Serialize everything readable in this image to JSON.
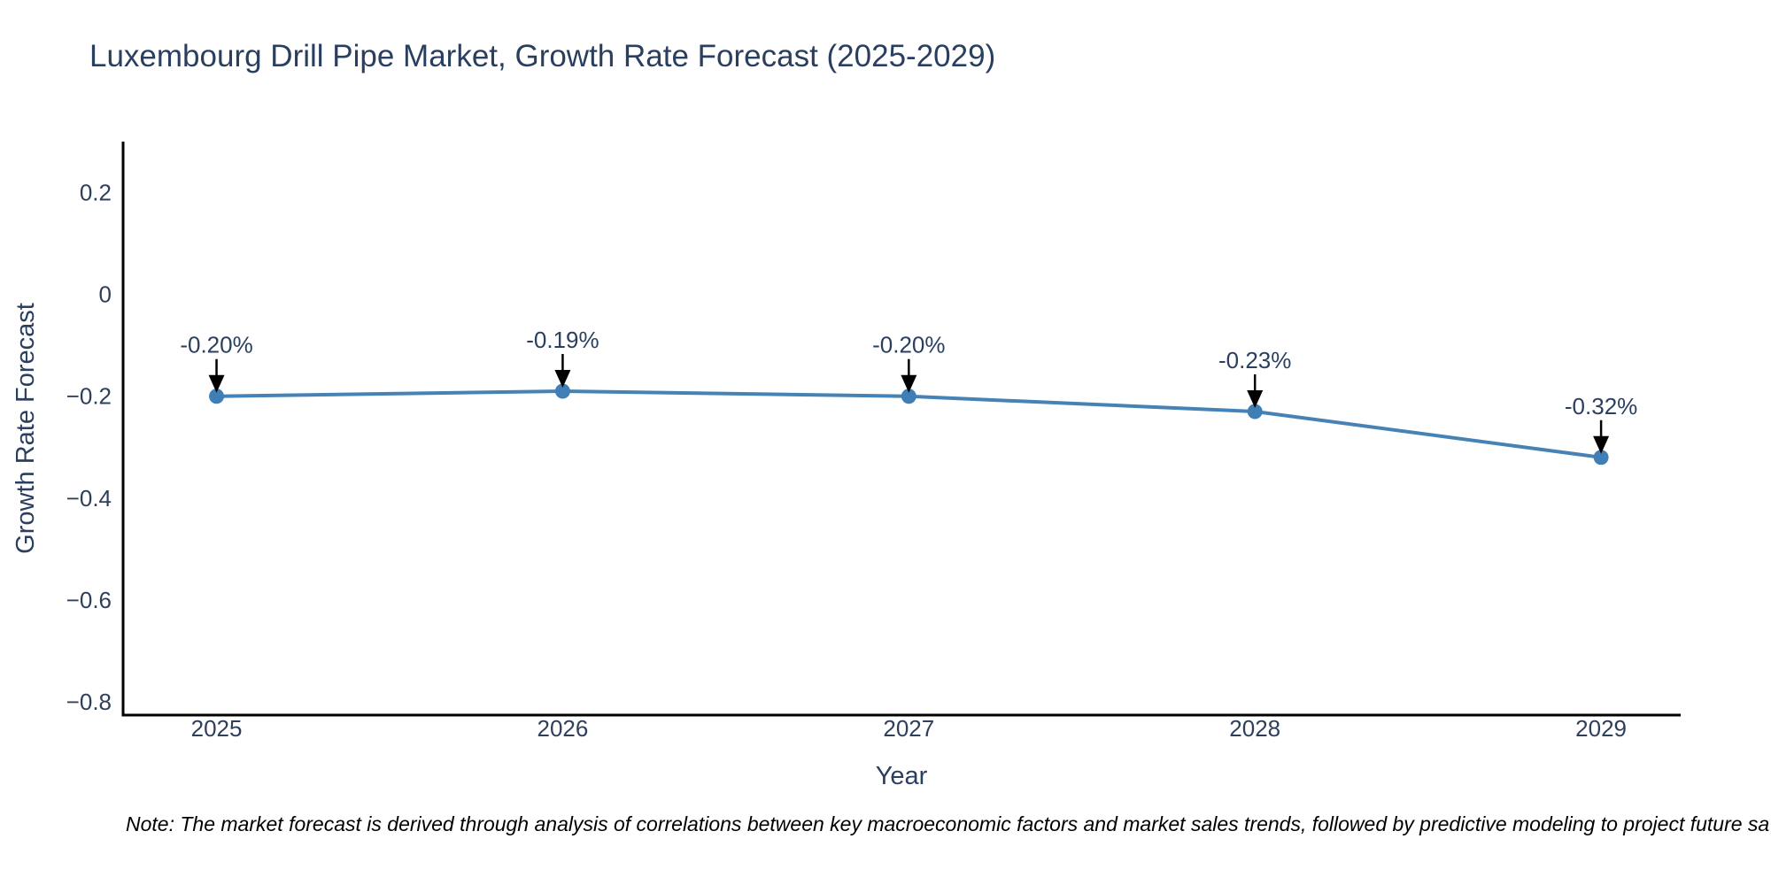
{
  "chart_data": {
    "type": "line",
    "title": "Luxembourg Drill Pipe Market, Growth Rate Forecast (2025-2029)",
    "xlabel": "Year",
    "ylabel": "Growth Rate Forecast",
    "x": [
      2025,
      2026,
      2027,
      2028,
      2029
    ],
    "values": [
      -0.2,
      -0.19,
      -0.2,
      -0.23,
      -0.32
    ],
    "point_labels": [
      "-0.20%",
      "-0.19%",
      "-0.20%",
      "-0.23%",
      "-0.32%"
    ],
    "xtick_labels": [
      "2025",
      "2026",
      "2027",
      "2028",
      "2029"
    ],
    "yticks": [
      0.2,
      0,
      -0.2,
      -0.4,
      -0.6,
      -0.8
    ],
    "ytick_labels": [
      "0.2",
      "0",
      "−0.2",
      "−0.4",
      "−0.6",
      "−0.8"
    ],
    "xlim": [
      2024.73,
      2029.23
    ],
    "ylim": [
      -0.826,
      0.3
    ],
    "grid": false,
    "legend": "none",
    "note": "Note: The market forecast is derived through analysis of correlations between key macroeconomic factors and market sales trends, followed by predictive modeling to project future sa",
    "colors": {
      "line": "#4682b4",
      "marker": "#3f7fb5",
      "arrow": "#000000",
      "axis": "#000000",
      "text": "#2a3f5f",
      "note_text": "#000000",
      "background": "#ffffff"
    }
  }
}
